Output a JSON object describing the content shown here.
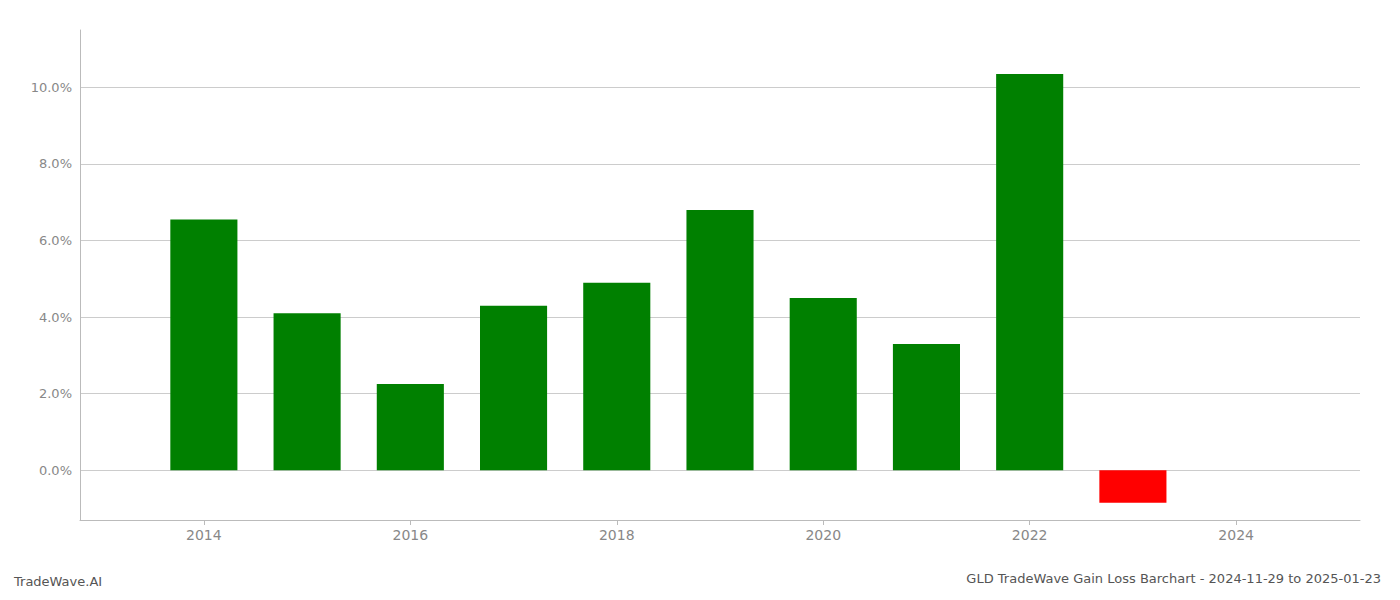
{
  "chart_data": {
    "type": "bar",
    "title": "GLD TradeWave Gain Loss Barchart - 2024-11-29 to 2025-01-23",
    "annotations": [
      "TradeWave.AI"
    ],
    "x": [
      2014,
      2015,
      2016,
      2017,
      2018,
      2019,
      2020,
      2021,
      2022,
      2023
    ],
    "values": [
      0.0655,
      0.041,
      0.0225,
      0.043,
      0.049,
      0.068,
      0.045,
      0.033,
      0.1035,
      -0.0085
    ],
    "colors": [
      "#008000",
      "#008000",
      "#008000",
      "#008000",
      "#008000",
      "#008000",
      "#008000",
      "#008000",
      "#008000",
      "#ff0000"
    ],
    "xlim": [
      2012.8,
      2025.2
    ],
    "xticks": [
      2014,
      2016,
      2018,
      2020,
      2022,
      2024
    ],
    "ylim": [
      -0.013,
      0.115
    ],
    "yticks": [
      {
        "value": 0.0,
        "label": "0.0%"
      },
      {
        "value": 0.02,
        "label": "2.0%"
      },
      {
        "value": 0.04,
        "label": "4.0%"
      },
      {
        "value": 0.06,
        "label": "6.0%"
      },
      {
        "value": 0.08,
        "label": "8.0%"
      },
      {
        "value": 0.1,
        "label": "10.0%"
      }
    ],
    "grid": true
  }
}
